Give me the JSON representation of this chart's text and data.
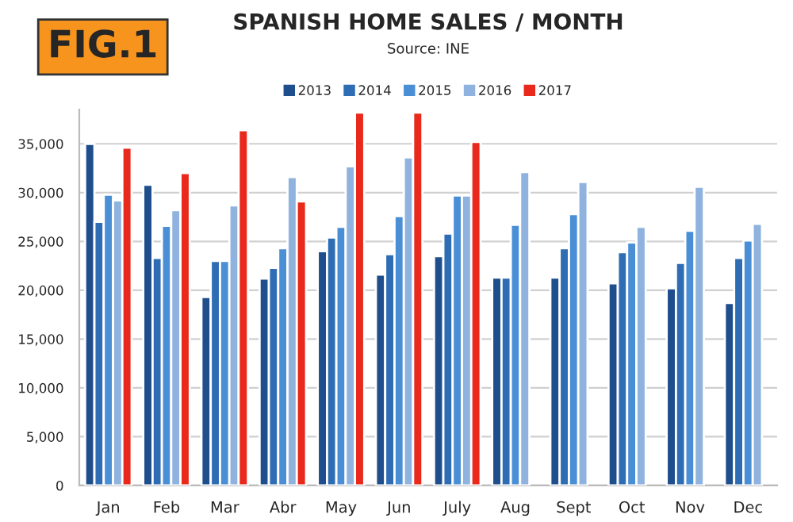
{
  "chart_data": {
    "type": "bar",
    "title": "SPANISH HOME SALES / MONTH",
    "subtitle": "Source: INE",
    "annotations": [
      "FIG.1"
    ],
    "categories": [
      "Jan",
      "Feb",
      "Mar",
      "Abr",
      "May",
      "Jun",
      "July",
      "Aug",
      "Sept",
      "Oct",
      "Nov",
      "Dec"
    ],
    "series": [
      {
        "name": "2013",
        "color": "#1f4e8c",
        "values": [
          35000,
          30800,
          19300,
          21200,
          24000,
          21600,
          23500,
          21300,
          21300,
          20700,
          20200,
          18700
        ]
      },
      {
        "name": "2014",
        "color": "#2e6db4",
        "values": [
          27000,
          23300,
          23000,
          22300,
          25400,
          23700,
          25800,
          21300,
          24300,
          23900,
          22800,
          23300
        ]
      },
      {
        "name": "2015",
        "color": "#4a8fd6",
        "values": [
          29800,
          26600,
          23000,
          24300,
          26500,
          27600,
          29700,
          26700,
          27800,
          24900,
          26100,
          25100
        ]
      },
      {
        "name": "2016",
        "color": "#8fb3de",
        "values": [
          29200,
          28200,
          28700,
          31600,
          32700,
          33600,
          29700,
          32100,
          31100,
          26500,
          30600,
          26800
        ]
      },
      {
        "name": "2017",
        "color": "#e8291c",
        "values": [
          34600,
          32000,
          36400,
          29100,
          38200,
          38200,
          35200,
          null,
          null,
          null,
          null,
          null
        ]
      }
    ],
    "ylim": [
      0,
      38500
    ],
    "yticks": [
      {
        "value": 0,
        "label": "0"
      },
      {
        "value": 5000,
        "label": "5,000"
      },
      {
        "value": 10000,
        "label": "10,000"
      },
      {
        "value": 15000,
        "label": "15,000"
      },
      {
        "value": 20000,
        "label": "20,000"
      },
      {
        "value": 25000,
        "label": "25,000"
      },
      {
        "value": 30000,
        "label": "30,000"
      },
      {
        "value": 35000,
        "label": "35,000"
      }
    ],
    "grid": "y",
    "legend": "top"
  }
}
